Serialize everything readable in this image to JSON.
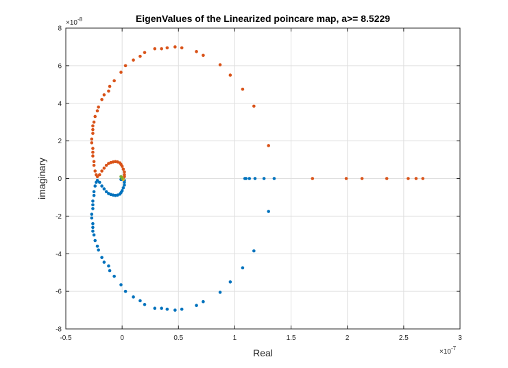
{
  "chart_data": {
    "type": "scatter",
    "title": "EigenValues of the Linearized poincare map, a>= 8.5229",
    "xlabel": "Real",
    "ylabel": "imaginary",
    "xlim": [
      -5e-08,
      3e-07
    ],
    "ylim": [
      -8e-08,
      8e-08
    ],
    "x_ticks": [
      -5e-08,
      0,
      5e-08,
      1e-07,
      1.5e-07,
      2e-07,
      2.5e-07,
      3e-07
    ],
    "x_tick_labels": [
      "-0.5",
      "0",
      "0.5",
      "1",
      "1.5",
      "2",
      "2.5",
      "3"
    ],
    "y_ticks": [
      -8e-08,
      -6e-08,
      -4e-08,
      -2e-08,
      0,
      2e-08,
      4e-08,
      6e-08,
      8e-08
    ],
    "y_tick_labels": [
      "-8",
      "-6",
      "-4",
      "-2",
      "0",
      "2",
      "4",
      "6",
      "8"
    ],
    "x_multiplier_base": "×10",
    "x_multiplier_exp": "-7",
    "y_multiplier_base": "×10",
    "y_multiplier_exp": "-8",
    "grid": true,
    "series": [
      {
        "color": "#0072BD",
        "points": [
          [
            4.7e-08,
            -7e-08
          ],
          [
            5.3e-08,
            -6.95e-08
          ],
          [
            4e-08,
            -6.95e-08
          ],
          [
            3.5e-08,
            -6.9e-08
          ],
          [
            2.9e-08,
            -6.9e-08
          ],
          [
            6.6e-08,
            -6.75e-08
          ],
          [
            7.2e-08,
            -6.55e-08
          ],
          [
            2e-08,
            -6.7e-08
          ],
          [
            1.6e-08,
            -6.5e-08
          ],
          [
            1e-08,
            -6.3e-08
          ],
          [
            3e-09,
            -6e-08
          ],
          [
            -1e-09,
            -5.65e-08
          ],
          [
            -7e-09,
            -5.2e-08
          ],
          [
            -1.1e-08,
            -4.9e-08
          ],
          [
            -1.2e-08,
            -4.65e-08
          ],
          [
            -1.6e-08,
            -4.45e-08
          ],
          [
            -1.8e-08,
            -4.2e-08
          ],
          [
            -2.1e-08,
            -3.8e-08
          ],
          [
            -2.2e-08,
            -3.6e-08
          ],
          [
            -2.4e-08,
            -3.3e-08
          ],
          [
            -2.5e-08,
            -3e-08
          ],
          [
            -2.6e-08,
            -2.8e-08
          ],
          [
            -2.6e-08,
            -2.6e-08
          ],
          [
            -2.6e-08,
            -2.4e-08
          ],
          [
            -2.7e-08,
            -2.1e-08
          ],
          [
            -2.7e-08,
            -1.9e-08
          ],
          [
            -2.6e-08,
            -1.6e-08
          ],
          [
            -2.6e-08,
            -1.4e-08
          ],
          [
            -2.6e-08,
            -1.2e-08
          ],
          [
            -2.5e-08,
            -9e-09
          ],
          [
            -2.5e-08,
            -7e-09
          ],
          [
            -2.4e-08,
            -4e-09
          ],
          [
            -2.3e-08,
            -2e-09
          ],
          [
            -2.2e-08,
            -1e-09
          ],
          [
            8.7e-08,
            -6.05e-08
          ],
          [
            9.6e-08,
            -5.5e-08
          ],
          [
            1.07e-07,
            -4.75e-08
          ],
          [
            1.17e-07,
            -3.85e-08
          ],
          [
            1.3e-07,
            -1.75e-08
          ],
          [
            1.09e-07,
            0
          ],
          [
            1.1e-07,
            0
          ],
          [
            1.13e-07,
            0
          ],
          [
            1.18e-07,
            0
          ],
          [
            1.26e-07,
            0
          ],
          [
            1.35e-07,
            0
          ],
          [
            -2e-08,
            -2e-09
          ],
          [
            -1.8e-08,
            -4e-09
          ],
          [
            -1.6e-08,
            -5.5e-09
          ],
          [
            -1.4e-08,
            -7e-09
          ],
          [
            -1.2e-08,
            -8e-09
          ],
          [
            -1e-08,
            -8.5e-09
          ],
          [
            -8e-09,
            -8.8e-09
          ],
          [
            -6e-09,
            -9e-09
          ],
          [
            -4e-09,
            -8.8e-09
          ],
          [
            -2e-09,
            -8.3e-09
          ],
          [
            -1e-09,
            -7.5e-09
          ],
          [
            0.0,
            -6.5e-09
          ],
          [
            1e-09,
            -5e-09
          ],
          [
            2e-09,
            -3.5e-09
          ],
          [
            2e-09,
            -2e-09
          ],
          [
            2e-09,
            -1e-09
          ],
          [
            1e-09,
            0
          ],
          [
            0.0,
            -5e-10
          ],
          [
            -1e-09,
            -5e-10
          ]
        ]
      },
      {
        "color": "#D95319",
        "points": [
          [
            4.7e-08,
            7e-08
          ],
          [
            5.3e-08,
            6.95e-08
          ],
          [
            4e-08,
            6.95e-08
          ],
          [
            3.5e-08,
            6.9e-08
          ],
          [
            2.9e-08,
            6.9e-08
          ],
          [
            6.6e-08,
            6.75e-08
          ],
          [
            7.2e-08,
            6.55e-08
          ],
          [
            2e-08,
            6.7e-08
          ],
          [
            1.6e-08,
            6.5e-08
          ],
          [
            1e-08,
            6.3e-08
          ],
          [
            3e-09,
            6e-08
          ],
          [
            -1e-09,
            5.65e-08
          ],
          [
            -7e-09,
            5.2e-08
          ],
          [
            -1.1e-08,
            4.9e-08
          ],
          [
            -1.2e-08,
            4.65e-08
          ],
          [
            -1.6e-08,
            4.45e-08
          ],
          [
            -1.8e-08,
            4.2e-08
          ],
          [
            -2.1e-08,
            3.8e-08
          ],
          [
            -2.2e-08,
            3.6e-08
          ],
          [
            -2.4e-08,
            3.3e-08
          ],
          [
            -2.5e-08,
            3e-08
          ],
          [
            -2.6e-08,
            2.8e-08
          ],
          [
            -2.6e-08,
            2.6e-08
          ],
          [
            -2.6e-08,
            2.4e-08
          ],
          [
            -2.7e-08,
            2.1e-08
          ],
          [
            -2.7e-08,
            1.9e-08
          ],
          [
            -2.6e-08,
            1.6e-08
          ],
          [
            -2.6e-08,
            1.4e-08
          ],
          [
            -2.6e-08,
            1.2e-08
          ],
          [
            -2.5e-08,
            9e-09
          ],
          [
            -2.5e-08,
            7e-09
          ],
          [
            -2.4e-08,
            4e-09
          ],
          [
            -2.3e-08,
            2e-09
          ],
          [
            -2.2e-08,
            1e-09
          ],
          [
            8.7e-08,
            6.05e-08
          ],
          [
            9.6e-08,
            5.5e-08
          ],
          [
            1.07e-07,
            4.75e-08
          ],
          [
            1.17e-07,
            3.85e-08
          ],
          [
            1.3e-07,
            1.75e-08
          ],
          [
            1.69e-07,
            0
          ],
          [
            1.99e-07,
            0
          ],
          [
            2.13e-07,
            0
          ],
          [
            2.35e-07,
            0
          ],
          [
            2.54e-07,
            0
          ],
          [
            2.61e-07,
            0
          ],
          [
            2.67e-07,
            0
          ],
          [
            -2e-08,
            2e-09
          ],
          [
            -1.8e-08,
            4e-09
          ],
          [
            -1.6e-08,
            5.5e-09
          ],
          [
            -1.4e-08,
            7e-09
          ],
          [
            -1.2e-08,
            8e-09
          ],
          [
            -1e-08,
            8.5e-09
          ],
          [
            -8e-09,
            8.8e-09
          ],
          [
            -6e-09,
            9e-09
          ],
          [
            -4e-09,
            8.8e-09
          ],
          [
            -2e-09,
            8.3e-09
          ],
          [
            -1e-09,
            7.5e-09
          ],
          [
            0.0,
            6.5e-09
          ],
          [
            1e-09,
            5e-09
          ],
          [
            2e-09,
            3.5e-09
          ],
          [
            2e-09,
            2e-09
          ],
          [
            2e-09,
            1e-09
          ]
        ]
      },
      {
        "color": "#EDB120",
        "points": [
          [
            0.0,
            5e-10
          ],
          [
            1e-09,
            -5e-10
          ]
        ]
      },
      {
        "color": "#77AC30",
        "points": [
          [
            0.0,
            0.0
          ],
          [
            -1e-09,
            1e-09
          ]
        ]
      }
    ]
  }
}
